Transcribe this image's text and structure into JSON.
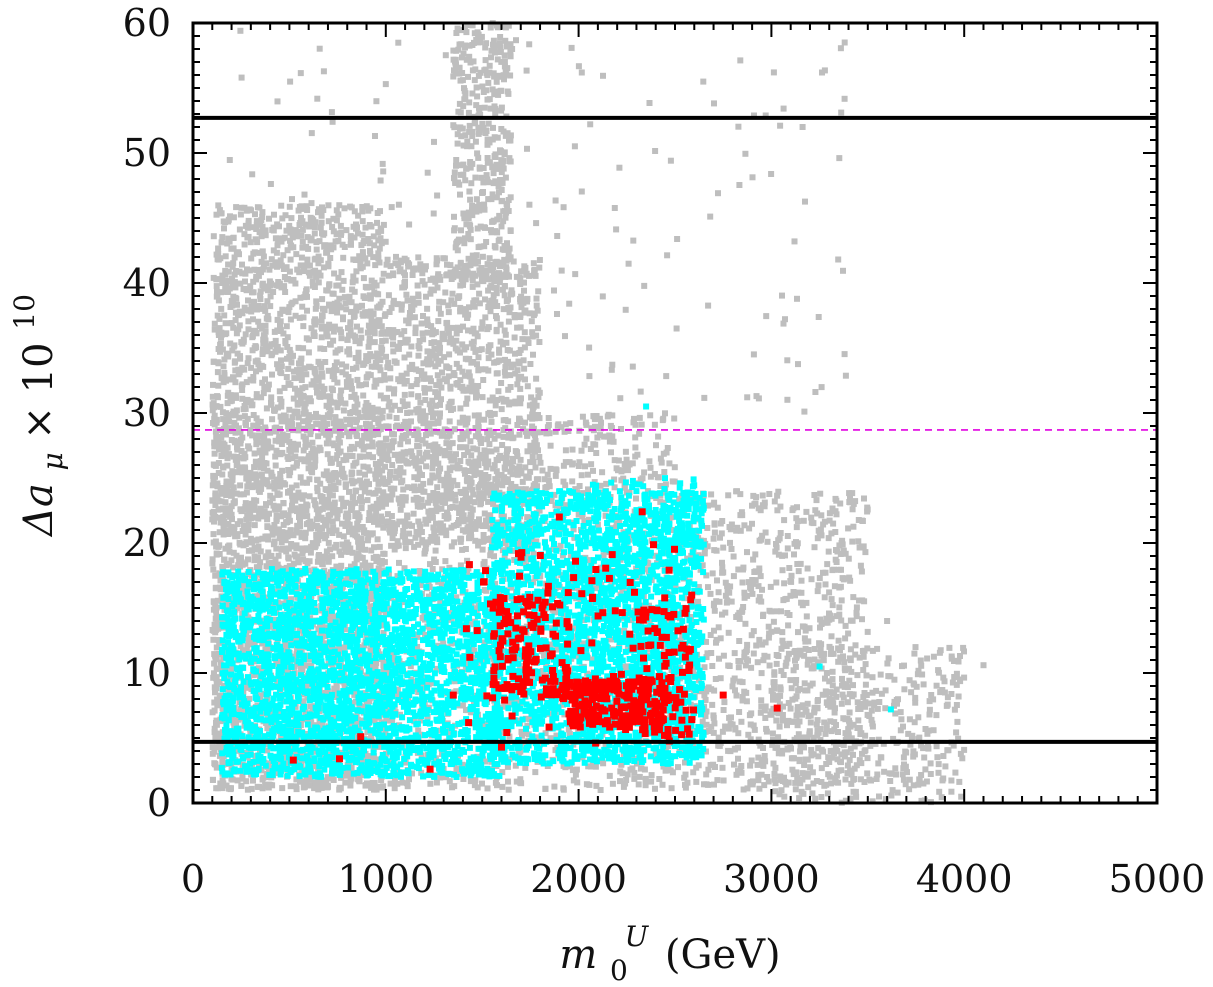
{
  "chart_data": {
    "type": "scatter",
    "xlabel": {
      "base": "m",
      "sub": "0",
      "sup": "U",
      "unit": "(GeV)"
    },
    "ylabel": {
      "text": "Δa",
      "sub": "μ",
      "times": " × 10",
      "sup": "10"
    },
    "xlim": [
      0,
      5000
    ],
    "ylim": [
      0,
      60
    ],
    "x_ticks": [
      0,
      1000,
      2000,
      3000,
      4000,
      5000
    ],
    "y_ticks": [
      0,
      10,
      20,
      30,
      40,
      50,
      60
    ],
    "x_tick_labels": [
      "0",
      "1000",
      "2000",
      "3000",
      "4000",
      "5000"
    ],
    "y_tick_labels": [
      "0",
      "10",
      "20",
      "30",
      "40",
      "50",
      "60"
    ],
    "grid": false,
    "reference_lines": [
      {
        "y": 52.7,
        "style": "solid",
        "color": "#000000"
      },
      {
        "y": 28.7,
        "style": "dashed",
        "color": "#e000e0"
      },
      {
        "y": 4.7,
        "style": "solid",
        "color": "#000000"
      }
    ],
    "series": [
      {
        "color": "#bebebe",
        "regions": [
          {
            "x": [
              100,
              1000
            ],
            "y": [
              1,
              46
            ],
            "n": 2600
          },
          {
            "x": [
              100,
              2500
            ],
            "y": [
              1,
              30
            ],
            "n": 2600
          },
          {
            "x": [
              1000,
              1800
            ],
            "y": [
              20,
              42
            ],
            "n": 1000
          },
          {
            "x": [
              1350,
              1650
            ],
            "y": [
              40,
              60
            ],
            "n": 400
          },
          {
            "x": [
              2500,
              3500
            ],
            "y": [
              1,
              24
            ],
            "n": 800
          },
          {
            "x": [
              3000,
              4000
            ],
            "y": [
              0,
              12
            ],
            "n": 400
          },
          {
            "x": [
              150,
              3400
            ],
            "y": [
              30,
              59
            ],
            "n": 180
          }
        ],
        "points": [
          [
            246,
            59.4
          ],
          [
            252,
            55.8
          ],
          [
            1000,
            55.3
          ],
          [
            3380,
            58.5
          ],
          [
            3120,
            43.2
          ],
          [
            3900,
            8.5
          ],
          [
            4100,
            10.6
          ],
          [
            3600,
            14.0
          ]
        ]
      },
      {
        "color": "#00ffff",
        "regions": [
          {
            "x": [
              150,
              1600
            ],
            "y": [
              2,
              18
            ],
            "n": 2600
          },
          {
            "x": [
              1550,
              2650
            ],
            "y": [
              3,
              24
            ],
            "n": 2200
          },
          {
            "x": [
              2000,
              2600
            ],
            "y": [
              5,
              25
            ],
            "n": 400
          }
        ],
        "points": [
          [
            2350,
            30.5
          ],
          [
            3250,
            10.5
          ],
          [
            3620,
            7.2
          ],
          [
            150,
            2.7
          ],
          [
            880,
            2.5
          ]
        ]
      },
      {
        "color": "#ff0000",
        "regions": [
          {
            "x": [
              1550,
              1950
            ],
            "y": [
              8,
              16
            ],
            "n": 130
          },
          {
            "x": [
              1950,
              2450
            ],
            "y": [
              5.8,
              9.5
            ],
            "n": 220
          },
          {
            "x": [
              2300,
              2600
            ],
            "y": [
              5,
              15
            ],
            "n": 80
          },
          {
            "x": [
              1400,
              2600
            ],
            "y": [
              4.5,
              20
            ],
            "n": 90
          }
        ],
        "points": [
          [
            520,
            3.3
          ],
          [
            760,
            3.4
          ],
          [
            870,
            5.1
          ],
          [
            1230,
            2.6
          ],
          [
            1350,
            8.3
          ],
          [
            2330,
            22.4
          ],
          [
            2750,
            8.3
          ],
          [
            3030,
            7.3
          ],
          [
            1900,
            22.0
          ],
          [
            1600,
            4.3
          ]
        ]
      }
    ]
  }
}
